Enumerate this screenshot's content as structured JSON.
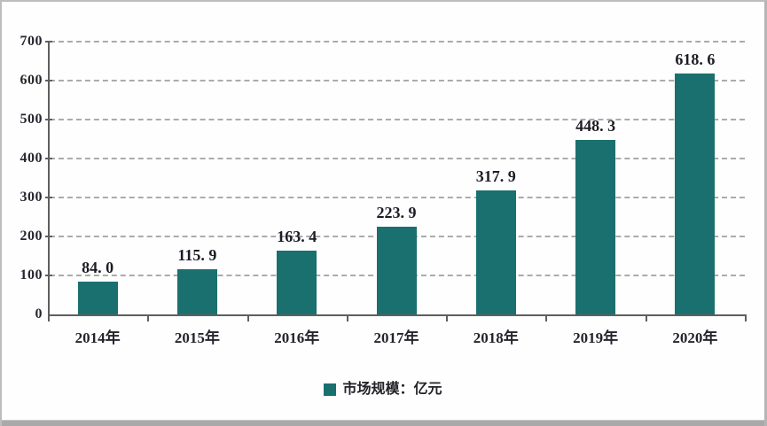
{
  "frame": {
    "background": "#fefefe",
    "border_color": "#bdbdbd",
    "bottom_strip_color": "#a9a9a9"
  },
  "legend": {
    "label": "市场规模：亿元",
    "marker": "teal-square",
    "marker_color": "#1a706e"
  },
  "chart_data": {
    "type": "bar",
    "title": "",
    "categories": [
      "2014年",
      "2015年",
      "2016年",
      "2017年",
      "2018年",
      "2019年",
      "2020年"
    ],
    "values": [
      84.0,
      115.9,
      163.4,
      223.9,
      317.9,
      448.3,
      618.6
    ],
    "value_labels": [
      "84. 0",
      "115. 9",
      "163. 4",
      "223. 9",
      "317. 9",
      "448. 3",
      "618. 6"
    ],
    "series_name": "市场规模：亿元",
    "xlabel": "",
    "ylabel": "",
    "ylim": [
      0,
      700
    ],
    "yticks": [
      0,
      100,
      200,
      300,
      400,
      500,
      600,
      700
    ],
    "grid": "horizontal-dashed",
    "legend_position": "bottom-center",
    "bar_color": "#1a706e",
    "grid_color": "#ababab",
    "axis_color": "#5f5f5f",
    "label_color": "#1c1c24"
  }
}
